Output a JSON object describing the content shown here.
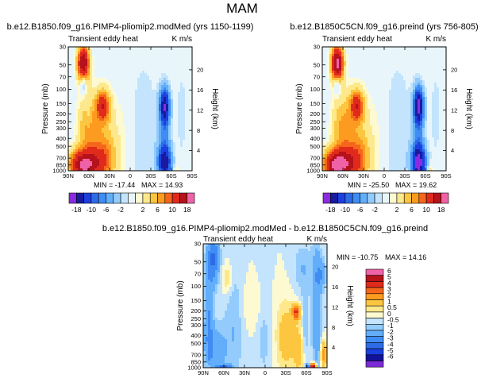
{
  "figure": {
    "title": "MAM"
  },
  "chart_data": [
    {
      "type": "heatmap",
      "name": "control",
      "title": "b.e12.B1850.f09_g16.PIMP4-pliomip2.modMed (yrs 1150-1199)",
      "variable": "Transient eddy heat",
      "units": "K m/s",
      "x_ticks": [
        "90N",
        "60N",
        "30N",
        "0",
        "30S",
        "60S",
        "90S"
      ],
      "x_values": [
        90,
        60,
        30,
        0,
        -30,
        -60,
        -90
      ],
      "y_ticks": [
        "30",
        "50",
        "70",
        "100",
        "150",
        "200",
        "250",
        "300",
        "400",
        "500",
        "700",
        "850",
        "1000"
      ],
      "y_values": [
        30,
        50,
        70,
        100,
        150,
        200,
        250,
        300,
        400,
        500,
        700,
        850,
        1000
      ],
      "ylabel": "Pressure (mb)",
      "right_ticks": [
        "20",
        "16",
        "12",
        "8",
        "4"
      ],
      "right_values_km": [
        20,
        16,
        12,
        8,
        4
      ],
      "ylabel_right": "Height (km)",
      "min_text": "MIN = -17.44",
      "max_text": "MAX = 14.93",
      "min": -17.44,
      "max": 14.93,
      "features": [
        {
          "lat": 68,
          "p": 48,
          "v": 18,
          "sx": 6,
          "sy": 0.35
        },
        {
          "lat": 68,
          "p": 85,
          "v": -6,
          "sx": 3,
          "sy": 0.2
        },
        {
          "lat": 40,
          "p": 160,
          "v": 12,
          "sx": 7,
          "sy": 0.3
        },
        {
          "lat": 68,
          "p": 850,
          "v": 18,
          "sx": 14,
          "sy": 0.3
        },
        {
          "lat": 40,
          "p": 750,
          "v": 6,
          "sx": 12,
          "sy": 0.45
        },
        {
          "lat": 40,
          "p": 500,
          "v": 4,
          "sx": 18,
          "sy": 1.0
        },
        {
          "lat": 62,
          "p": 280,
          "v": 5,
          "sx": 10,
          "sy": 0.6
        },
        {
          "lat": -50,
          "p": 160,
          "v": -16,
          "sx": 5,
          "sy": 0.35
        },
        {
          "lat": -50,
          "p": 800,
          "v": -14,
          "sx": 7,
          "sy": 0.35
        },
        {
          "lat": -50,
          "p": 400,
          "v": -5,
          "sx": 6,
          "sy": 0.8
        },
        {
          "lat": -20,
          "p": 350,
          "v": -2,
          "sx": 15,
          "sy": 1.5
        },
        {
          "lat": -75,
          "p": 200,
          "v": -1.5,
          "sx": 6,
          "sy": 1.0
        },
        {
          "lat": 8,
          "p": 400,
          "v": 0.6,
          "sx": 8,
          "sy": 1.5
        },
        {
          "lat": 60,
          "p": 200,
          "v": -2,
          "sx": 3,
          "sy": 0.3
        },
        {
          "lat": -68,
          "p": 980,
          "v": 2.5,
          "sx": 3,
          "sy": 0.12
        }
      ]
    },
    {
      "type": "heatmap",
      "name": "preindustrial",
      "title": "b.e12.B1850C5CN.f09_g16.preind (yrs 756-805)",
      "variable": "Transient eddy heat",
      "units": "K m/s",
      "x_ticks": [
        "90N",
        "60N",
        "30N",
        "0",
        "30S",
        "60S",
        "90S"
      ],
      "x_values": [
        90,
        60,
        30,
        0,
        -30,
        -60,
        -90
      ],
      "y_ticks": [
        "30",
        "50",
        "70",
        "100",
        "150",
        "200",
        "250",
        "300",
        "400",
        "500",
        "700",
        "850",
        "1000"
      ],
      "y_values": [
        30,
        50,
        70,
        100,
        150,
        200,
        250,
        300,
        400,
        500,
        700,
        850,
        1000
      ],
      "ylabel": "Pressure (mb)",
      "right_ticks": [
        "20",
        "16",
        "12",
        "8",
        "4"
      ],
      "right_values_km": [
        20,
        16,
        12,
        8,
        4
      ],
      "ylabel_right": "Height (km)",
      "min_text": "MIN = -25.50",
      "max_text": "MAX = 19.62",
      "min": -25.5,
      "max": 19.62,
      "features": [
        {
          "lat": 68,
          "p": 48,
          "v": 20,
          "sx": 6,
          "sy": 0.35
        },
        {
          "lat": 68,
          "p": 85,
          "v": -6,
          "sx": 3,
          "sy": 0.2
        },
        {
          "lat": 40,
          "p": 160,
          "v": 12,
          "sx": 7,
          "sy": 0.3
        },
        {
          "lat": 68,
          "p": 850,
          "v": 20,
          "sx": 14,
          "sy": 0.3
        },
        {
          "lat": 40,
          "p": 750,
          "v": 6,
          "sx": 12,
          "sy": 0.45
        },
        {
          "lat": 40,
          "p": 500,
          "v": 4,
          "sx": 18,
          "sy": 1.0
        },
        {
          "lat": 62,
          "p": 280,
          "v": 5,
          "sx": 10,
          "sy": 0.6
        },
        {
          "lat": -50,
          "p": 160,
          "v": -18,
          "sx": 5,
          "sy": 0.35
        },
        {
          "lat": -50,
          "p": 800,
          "v": -18,
          "sx": 7,
          "sy": 0.35
        },
        {
          "lat": -50,
          "p": 400,
          "v": -5,
          "sx": 6,
          "sy": 0.8
        },
        {
          "lat": -20,
          "p": 350,
          "v": -2,
          "sx": 15,
          "sy": 1.5
        },
        {
          "lat": -75,
          "p": 200,
          "v": -1.5,
          "sx": 6,
          "sy": 1.0
        },
        {
          "lat": 8,
          "p": 400,
          "v": 0.6,
          "sx": 8,
          "sy": 1.5
        },
        {
          "lat": -68,
          "p": 980,
          "v": 3,
          "sx": 3,
          "sy": 0.12
        }
      ]
    },
    {
      "type": "heatmap",
      "name": "difference",
      "title": "b.e12.B1850.f09_g16.PIMP4-pliomip2.modMed - b.e12.B1850C5CN.f09_g16.preind",
      "variable": "Transient eddy heat",
      "units": "K m/s",
      "x_ticks": [
        "90N",
        "60N",
        "30N",
        "0",
        "30S",
        "60S",
        "90S"
      ],
      "x_values": [
        90,
        60,
        30,
        0,
        -30,
        -60,
        -90
      ],
      "y_ticks": [
        "30",
        "50",
        "70",
        "100",
        "150",
        "200",
        "250",
        "300",
        "400",
        "500",
        "700",
        "850",
        "1000"
      ],
      "y_values": [
        30,
        50,
        70,
        100,
        150,
        200,
        250,
        300,
        400,
        500,
        700,
        850,
        1000
      ],
      "ylabel": "Pressure (mb)",
      "right_ticks": [
        "20",
        "16",
        "12",
        "8",
        "4"
      ],
      "right_values_km": [
        20,
        16,
        12,
        8,
        4
      ],
      "ylabel_right": "Height (km)",
      "min_text": "MIN = -10.75",
      "max_text": "MAX =  14.16",
      "min": -10.75,
      "max": 14.16,
      "features": [
        {
          "lat": 75,
          "p": 45,
          "v": -3,
          "sx": 6,
          "sy": 0.5
        },
        {
          "lat": 55,
          "p": 80,
          "v": 1.2,
          "sx": 5,
          "sy": 0.3
        },
        {
          "lat": 82,
          "p": 280,
          "v": -2,
          "sx": 5,
          "sy": 1.2
        },
        {
          "lat": 45,
          "p": 300,
          "v": -1,
          "sx": 10,
          "sy": 1.2
        },
        {
          "lat": 70,
          "p": 600,
          "v": -1.5,
          "sx": 10,
          "sy": 0.5
        },
        {
          "lat": 15,
          "p": 170,
          "v": 0.6,
          "sx": 15,
          "sy": 0.5
        },
        {
          "lat": 2,
          "p": 330,
          "v": -0.8,
          "sx": 8,
          "sy": 1.0
        },
        {
          "lat": -30,
          "p": 420,
          "v": 1.6,
          "sx": 10,
          "sy": 0.7
        },
        {
          "lat": -45,
          "p": 205,
          "v": 4.2,
          "sx": 4,
          "sy": 0.15
        },
        {
          "lat": -50,
          "p": 600,
          "v": 1.5,
          "sx": 6,
          "sy": 0.5
        },
        {
          "lat": -58,
          "p": 350,
          "v": -1.2,
          "sx": 4,
          "sy": 0.7
        },
        {
          "lat": -55,
          "p": 60,
          "v": -1,
          "sx": 10,
          "sy": 0.5
        },
        {
          "lat": -75,
          "p": 200,
          "v": -1.8,
          "sx": 5,
          "sy": 1.5
        },
        {
          "lat": -82,
          "p": 70,
          "v": -1.5,
          "sx": 5,
          "sy": 0.3
        },
        {
          "lat": -85,
          "p": 700,
          "v": 2.5,
          "sx": 3,
          "sy": 0.3
        },
        {
          "lat": -70,
          "p": 985,
          "v": 7,
          "sx": 3,
          "sy": 0.08
        },
        {
          "lat": -62,
          "p": 985,
          "v": -5,
          "sx": 2,
          "sy": 0.06
        },
        {
          "lat": 60,
          "p": 985,
          "v": -3,
          "sx": 8,
          "sy": 0.06
        },
        {
          "lat": 82,
          "p": 985,
          "v": 1.2,
          "sx": 3,
          "sy": 0.08
        }
      ]
    }
  ],
  "label_bars": {
    "shared": {
      "tick_labels": [
        "-18",
        "-10",
        "-6",
        "-2",
        "2",
        "6",
        "10",
        "18"
      ],
      "tick_values": [
        -18,
        -10,
        -6,
        -2,
        2,
        6,
        10,
        18
      ],
      "levels": [
        -18,
        -14,
        -10,
        -8,
        -6,
        -4,
        -2,
        -1,
        1,
        2,
        4,
        6,
        8,
        10,
        14,
        18
      ]
    },
    "difference": {
      "tick_labels": [
        "6",
        "5",
        "4",
        "3",
        "2",
        "1",
        "0.5",
        "0",
        "-0.5",
        "-1",
        "-2",
        "-3",
        "-4",
        "-5",
        "-6"
      ],
      "levels": [
        -6,
        -5,
        -4,
        -3,
        -2,
        -1,
        -0.5,
        0,
        0.5,
        1,
        2,
        3,
        4,
        5,
        6
      ]
    }
  },
  "colors": {
    "palette": [
      "#8a2be2",
      "#1a1a9e",
      "#1c3fe0",
      "#2e6be6",
      "#3f8cf5",
      "#63aefa",
      "#93cbfc",
      "#c3e4fc",
      "#e8f6fc",
      "#fdfad2",
      "#fde98c",
      "#fdc640",
      "#fd9b20",
      "#f5661c",
      "#e02a1c",
      "#b5121c",
      "#f062a8"
    ],
    "diff_palette": [
      "#7b2ad6",
      "#12129a",
      "#1c3fe0",
      "#2e6be6",
      "#3f8cf5",
      "#63aefa",
      "#93cbfc",
      "#c3e4fc",
      "#fdfad2",
      "#fde98c",
      "#fdc640",
      "#fd9b20",
      "#f5661c",
      "#e02a1c",
      "#b5121c",
      "#f062a8"
    ]
  }
}
